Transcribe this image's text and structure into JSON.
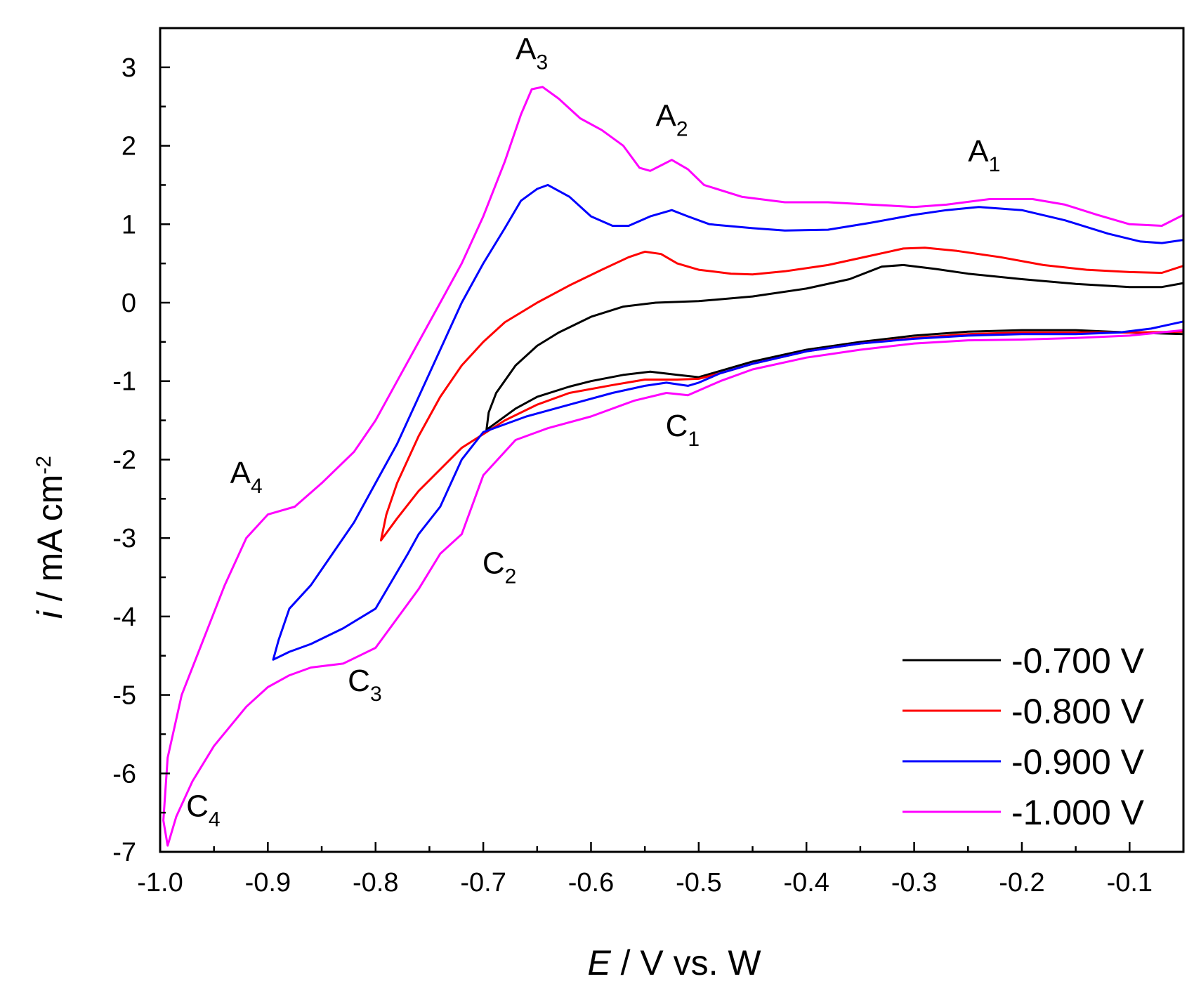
{
  "chart_data": {
    "type": "line",
    "title": "",
    "xlabel": {
      "italic": "E",
      "rest": " / V vs. W"
    },
    "ylabel": {
      "italic": "i",
      "rest": " / mA cm",
      "sup": "-2"
    },
    "xlim": [
      -1.0,
      -0.05
    ],
    "ylim": [
      -7,
      3.5
    ],
    "xticks": [
      -1.0,
      -0.9,
      -0.8,
      -0.7,
      -0.6,
      -0.5,
      -0.4,
      -0.3,
      -0.2,
      -0.1
    ],
    "xtick_labels": [
      "-1.0",
      "-0.9",
      "-0.8",
      "-0.7",
      "-0.6",
      "-0.5",
      "-0.4",
      "-0.3",
      "-0.2",
      "-0.1"
    ],
    "yticks": [
      -7,
      -6,
      -5,
      -4,
      -3,
      -2,
      -1,
      0,
      1,
      2,
      3
    ],
    "ytick_labels": [
      "-7",
      "-6",
      "-5",
      "-4",
      "-3",
      "-2",
      "-1",
      "0",
      "1",
      "2",
      "3"
    ],
    "grid": false,
    "legend_position": "bottom-right",
    "series": [
      {
        "name": "-0.700 V",
        "color": "#000000",
        "points": [
          [
            -0.05,
            -0.4
          ],
          [
            -0.1,
            -0.38
          ],
          [
            -0.15,
            -0.35
          ],
          [
            -0.2,
            -0.35
          ],
          [
            -0.25,
            -0.37
          ],
          [
            -0.3,
            -0.42
          ],
          [
            -0.35,
            -0.5
          ],
          [
            -0.4,
            -0.6
          ],
          [
            -0.45,
            -0.75
          ],
          [
            -0.48,
            -0.87
          ],
          [
            -0.5,
            -0.95
          ],
          [
            -0.52,
            -0.92
          ],
          [
            -0.545,
            -0.88
          ],
          [
            -0.57,
            -0.92
          ],
          [
            -0.6,
            -1.0
          ],
          [
            -0.62,
            -1.07
          ],
          [
            -0.65,
            -1.2
          ],
          [
            -0.67,
            -1.35
          ],
          [
            -0.685,
            -1.5
          ],
          [
            -0.697,
            -1.62
          ],
          [
            -0.695,
            -1.4
          ],
          [
            -0.688,
            -1.15
          ],
          [
            -0.67,
            -0.8
          ],
          [
            -0.65,
            -0.55
          ],
          [
            -0.63,
            -0.38
          ],
          [
            -0.6,
            -0.18
          ],
          [
            -0.57,
            -0.05
          ],
          [
            -0.54,
            0.0
          ],
          [
            -0.5,
            0.02
          ],
          [
            -0.45,
            0.08
          ],
          [
            -0.4,
            0.18
          ],
          [
            -0.36,
            0.3
          ],
          [
            -0.33,
            0.46
          ],
          [
            -0.31,
            0.48
          ],
          [
            -0.28,
            0.43
          ],
          [
            -0.25,
            0.37
          ],
          [
            -0.2,
            0.3
          ],
          [
            -0.15,
            0.24
          ],
          [
            -0.1,
            0.2
          ],
          [
            -0.07,
            0.2
          ],
          [
            -0.05,
            0.25
          ]
        ]
      },
      {
        "name": "-0.800 V",
        "color": "#ff0000",
        "points": [
          [
            -0.05,
            -0.37
          ],
          [
            -0.1,
            -0.38
          ],
          [
            -0.15,
            -0.38
          ],
          [
            -0.2,
            -0.38
          ],
          [
            -0.25,
            -0.4
          ],
          [
            -0.3,
            -0.45
          ],
          [
            -0.35,
            -0.52
          ],
          [
            -0.4,
            -0.62
          ],
          [
            -0.45,
            -0.78
          ],
          [
            -0.48,
            -0.9
          ],
          [
            -0.5,
            -0.97
          ],
          [
            -0.52,
            -0.98
          ],
          [
            -0.55,
            -0.98
          ],
          [
            -0.58,
            -1.05
          ],
          [
            -0.62,
            -1.15
          ],
          [
            -0.65,
            -1.3
          ],
          [
            -0.68,
            -1.5
          ],
          [
            -0.72,
            -1.85
          ],
          [
            -0.76,
            -2.4
          ],
          [
            -0.78,
            -2.75
          ],
          [
            -0.795,
            -3.03
          ],
          [
            -0.79,
            -2.7
          ],
          [
            -0.78,
            -2.3
          ],
          [
            -0.76,
            -1.7
          ],
          [
            -0.74,
            -1.2
          ],
          [
            -0.72,
            -0.8
          ],
          [
            -0.7,
            -0.5
          ],
          [
            -0.68,
            -0.25
          ],
          [
            -0.65,
            0.0
          ],
          [
            -0.62,
            0.22
          ],
          [
            -0.59,
            0.42
          ],
          [
            -0.565,
            0.58
          ],
          [
            -0.55,
            0.65
          ],
          [
            -0.535,
            0.62
          ],
          [
            -0.52,
            0.5
          ],
          [
            -0.5,
            0.42
          ],
          [
            -0.47,
            0.37
          ],
          [
            -0.45,
            0.36
          ],
          [
            -0.42,
            0.4
          ],
          [
            -0.38,
            0.48
          ],
          [
            -0.34,
            0.6
          ],
          [
            -0.31,
            0.69
          ],
          [
            -0.29,
            0.7
          ],
          [
            -0.26,
            0.66
          ],
          [
            -0.22,
            0.58
          ],
          [
            -0.18,
            0.48
          ],
          [
            -0.14,
            0.42
          ],
          [
            -0.1,
            0.39
          ],
          [
            -0.07,
            0.38
          ],
          [
            -0.05,
            0.47
          ]
        ]
      },
      {
        "name": "-0.900 V",
        "color": "#0000ff",
        "points": [
          [
            -0.05,
            -0.24
          ],
          [
            -0.08,
            -0.33
          ],
          [
            -0.11,
            -0.38
          ],
          [
            -0.15,
            -0.4
          ],
          [
            -0.2,
            -0.4
          ],
          [
            -0.25,
            -0.42
          ],
          [
            -0.3,
            -0.46
          ],
          [
            -0.35,
            -0.52
          ],
          [
            -0.4,
            -0.62
          ],
          [
            -0.45,
            -0.78
          ],
          [
            -0.48,
            -0.9
          ],
          [
            -0.5,
            -1.02
          ],
          [
            -0.51,
            -1.06
          ],
          [
            -0.53,
            -1.02
          ],
          [
            -0.55,
            -1.06
          ],
          [
            -0.58,
            -1.15
          ],
          [
            -0.62,
            -1.3
          ],
          [
            -0.66,
            -1.45
          ],
          [
            -0.7,
            -1.65
          ],
          [
            -0.72,
            -2.0
          ],
          [
            -0.74,
            -2.6
          ],
          [
            -0.76,
            -2.95
          ],
          [
            -0.77,
            -3.2
          ],
          [
            -0.8,
            -3.9
          ],
          [
            -0.83,
            -4.15
          ],
          [
            -0.86,
            -4.35
          ],
          [
            -0.88,
            -4.45
          ],
          [
            -0.895,
            -4.55
          ],
          [
            -0.89,
            -4.3
          ],
          [
            -0.88,
            -3.9
          ],
          [
            -0.86,
            -3.6
          ],
          [
            -0.84,
            -3.2
          ],
          [
            -0.82,
            -2.8
          ],
          [
            -0.8,
            -2.3
          ],
          [
            -0.78,
            -1.8
          ],
          [
            -0.76,
            -1.2
          ],
          [
            -0.74,
            -0.6
          ],
          [
            -0.72,
            0.0
          ],
          [
            -0.7,
            0.5
          ],
          [
            -0.68,
            0.95
          ],
          [
            -0.665,
            1.3
          ],
          [
            -0.65,
            1.45
          ],
          [
            -0.64,
            1.5
          ],
          [
            -0.62,
            1.35
          ],
          [
            -0.6,
            1.1
          ],
          [
            -0.58,
            0.98
          ],
          [
            -0.565,
            0.98
          ],
          [
            -0.545,
            1.1
          ],
          [
            -0.525,
            1.18
          ],
          [
            -0.51,
            1.1
          ],
          [
            -0.49,
            1.0
          ],
          [
            -0.45,
            0.95
          ],
          [
            -0.42,
            0.92
          ],
          [
            -0.38,
            0.93
          ],
          [
            -0.34,
            1.02
          ],
          [
            -0.3,
            1.12
          ],
          [
            -0.27,
            1.18
          ],
          [
            -0.24,
            1.22
          ],
          [
            -0.2,
            1.18
          ],
          [
            -0.16,
            1.05
          ],
          [
            -0.12,
            0.88
          ],
          [
            -0.09,
            0.78
          ],
          [
            -0.07,
            0.76
          ],
          [
            -0.05,
            0.8
          ]
        ]
      },
      {
        "name": "-1.000 V",
        "color": "#ff00ff",
        "points": [
          [
            -0.05,
            -0.35
          ],
          [
            -0.1,
            -0.42
          ],
          [
            -0.15,
            -0.45
          ],
          [
            -0.2,
            -0.47
          ],
          [
            -0.25,
            -0.48
          ],
          [
            -0.3,
            -0.52
          ],
          [
            -0.35,
            -0.6
          ],
          [
            -0.4,
            -0.7
          ],
          [
            -0.45,
            -0.85
          ],
          [
            -0.48,
            -1.0
          ],
          [
            -0.5,
            -1.12
          ],
          [
            -0.51,
            -1.18
          ],
          [
            -0.53,
            -1.15
          ],
          [
            -0.56,
            -1.25
          ],
          [
            -0.6,
            -1.45
          ],
          [
            -0.64,
            -1.6
          ],
          [
            -0.67,
            -1.75
          ],
          [
            -0.7,
            -2.2
          ],
          [
            -0.72,
            -2.95
          ],
          [
            -0.74,
            -3.2
          ],
          [
            -0.76,
            -3.65
          ],
          [
            -0.8,
            -4.4
          ],
          [
            -0.83,
            -4.6
          ],
          [
            -0.86,
            -4.65
          ],
          [
            -0.88,
            -4.75
          ],
          [
            -0.9,
            -4.9
          ],
          [
            -0.92,
            -5.15
          ],
          [
            -0.95,
            -5.65
          ],
          [
            -0.97,
            -6.1
          ],
          [
            -0.985,
            -6.55
          ],
          [
            -0.993,
            -6.92
          ],
          [
            -0.997,
            -6.6
          ],
          [
            -0.993,
            -5.8
          ],
          [
            -0.98,
            -5.0
          ],
          [
            -0.96,
            -4.3
          ],
          [
            -0.94,
            -3.6
          ],
          [
            -0.92,
            -3.0
          ],
          [
            -0.9,
            -2.7
          ],
          [
            -0.875,
            -2.6
          ],
          [
            -0.85,
            -2.3
          ],
          [
            -0.82,
            -1.9
          ],
          [
            -0.8,
            -1.5
          ],
          [
            -0.78,
            -1.0
          ],
          [
            -0.76,
            -0.5
          ],
          [
            -0.74,
            0.0
          ],
          [
            -0.72,
            0.5
          ],
          [
            -0.7,
            1.1
          ],
          [
            -0.68,
            1.8
          ],
          [
            -0.665,
            2.4
          ],
          [
            -0.655,
            2.72
          ],
          [
            -0.645,
            2.75
          ],
          [
            -0.63,
            2.6
          ],
          [
            -0.61,
            2.35
          ],
          [
            -0.59,
            2.2
          ],
          [
            -0.57,
            2.0
          ],
          [
            -0.555,
            1.72
          ],
          [
            -0.545,
            1.68
          ],
          [
            -0.535,
            1.75
          ],
          [
            -0.525,
            1.82
          ],
          [
            -0.51,
            1.7
          ],
          [
            -0.495,
            1.5
          ],
          [
            -0.46,
            1.35
          ],
          [
            -0.42,
            1.28
          ],
          [
            -0.38,
            1.28
          ],
          [
            -0.34,
            1.25
          ],
          [
            -0.3,
            1.22
          ],
          [
            -0.27,
            1.25
          ],
          [
            -0.23,
            1.32
          ],
          [
            -0.19,
            1.32
          ],
          [
            -0.16,
            1.25
          ],
          [
            -0.13,
            1.12
          ],
          [
            -0.1,
            1.0
          ],
          [
            -0.07,
            0.98
          ],
          [
            -0.05,
            1.12
          ]
        ]
      }
    ],
    "annotations": [
      {
        "main": "A",
        "sub": "1",
        "x": -0.235,
        "y": 1.8
      },
      {
        "main": "A",
        "sub": "2",
        "x": -0.525,
        "y": 2.25
      },
      {
        "main": "A",
        "sub": "3",
        "x": -0.655,
        "y": 3.1
      },
      {
        "main": "A",
        "sub": "4",
        "x": -0.92,
        "y": -2.3
      },
      {
        "main": "C",
        "sub": "1",
        "x": -0.515,
        "y": -1.7
      },
      {
        "main": "C",
        "sub": "2",
        "x": -0.685,
        "y": -3.45
      },
      {
        "main": "C",
        "sub": "3",
        "x": -0.81,
        "y": -4.95
      },
      {
        "main": "C",
        "sub": "4",
        "x": -0.96,
        "y": -6.55
      }
    ]
  }
}
